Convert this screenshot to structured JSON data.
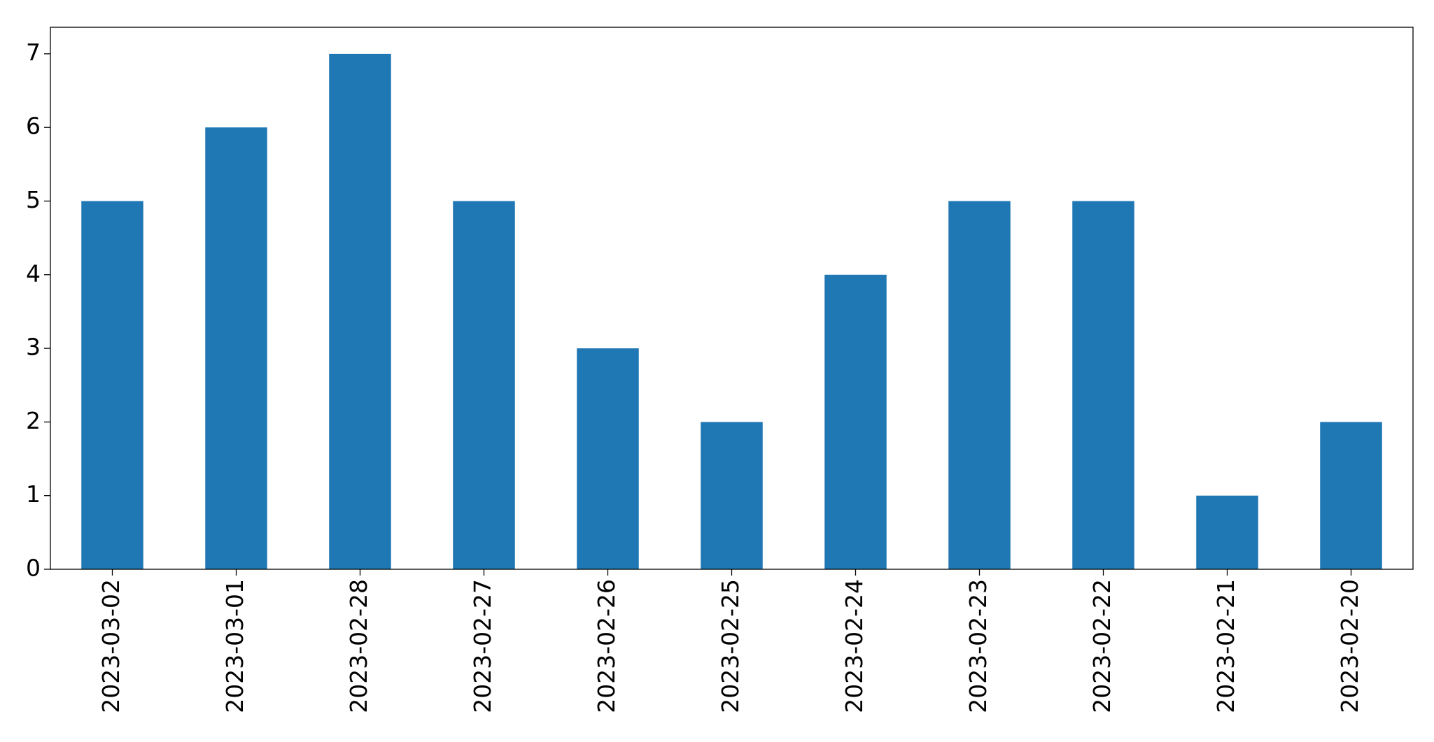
{
  "chart_data": {
    "type": "bar",
    "categories": [
      "2023-03-02",
      "2023-03-01",
      "2023-02-28",
      "2023-02-27",
      "2023-02-26",
      "2023-02-25",
      "2023-02-24",
      "2023-02-23",
      "2023-02-22",
      "2023-02-21",
      "2023-02-20"
    ],
    "values": [
      5,
      6,
      7,
      5,
      3,
      2,
      4,
      5,
      5,
      1,
      2
    ],
    "color": "#1f77b4",
    "ylim": [
      0,
      7.36
    ],
    "yticks": [
      0,
      1,
      2,
      3,
      4,
      5,
      6,
      7
    ],
    "grid": false
  }
}
